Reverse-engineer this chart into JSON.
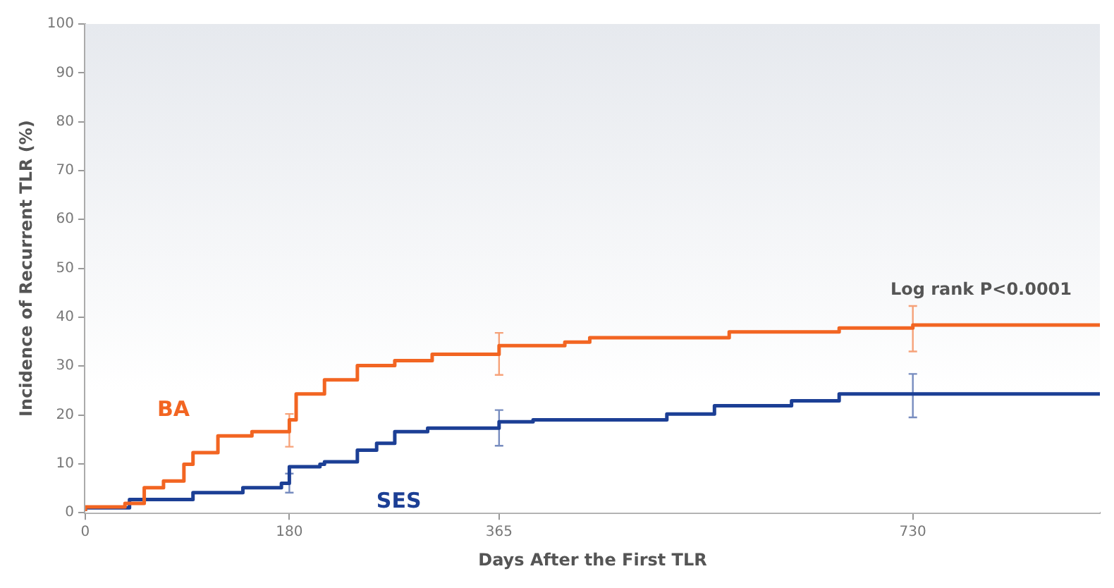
{
  "chart_data": {
    "type": "step",
    "xlabel": "Days After the First TLR",
    "ylabel": "Incidence of Recurrent TLR (%)",
    "xlim": [
      0,
      895
    ],
    "xticks": [
      0,
      180,
      365,
      730
    ],
    "ylim": [
      0,
      100
    ],
    "yticks": [
      0,
      10,
      20,
      30,
      40,
      50,
      60,
      70,
      80,
      90,
      100
    ],
    "grid": false,
    "legend": false,
    "marker": "none",
    "annotations": [
      "Log rank P<0.0001"
    ],
    "series": [
      {
        "name": "BA",
        "color": "#f26522",
        "x": [
          0,
          35,
          52,
          69,
          87,
          95,
          117,
          147,
          180,
          186,
          211,
          240,
          273,
          306,
          365,
          423,
          445,
          568,
          665,
          730,
          782,
          895
        ],
        "values": [
          0.3,
          1.2,
          1.9,
          5.1,
          6.5,
          9.9,
          12.3,
          15.7,
          16.6,
          19,
          24.3,
          27.2,
          30.1,
          31.1,
          32.4,
          34.2,
          34.9,
          35.8,
          37,
          37.8,
          38.4,
          38.4
        ],
        "errors": [
          null,
          null,
          null,
          null,
          null,
          null,
          null,
          null,
          [
            13.5,
            20.2
          ],
          null,
          null,
          null,
          null,
          null,
          [
            28.2,
            36.8
          ],
          null,
          null,
          null,
          null,
          [
            33,
            42.3
          ],
          null,
          null
        ]
      },
      {
        "name": "SES",
        "color": "#1c3f95",
        "x": [
          0,
          39,
          95,
          139,
          173,
          180,
          207,
          211,
          240,
          257,
          273,
          302,
          365,
          395,
          513,
          555,
          623,
          665,
          722,
          730,
          895
        ],
        "values": [
          0.3,
          1,
          2.7,
          4.1,
          5.1,
          6,
          9.4,
          9.9,
          10.4,
          12.8,
          14.2,
          16.6,
          17.3,
          18.6,
          19,
          20.2,
          21.9,
          22.9,
          24.3,
          24.3,
          24.3
        ],
        "errors": [
          null,
          null,
          null,
          null,
          null,
          [
            4.1,
            8
          ],
          null,
          null,
          null,
          null,
          null,
          null,
          [
            13.7,
            21
          ],
          null,
          null,
          null,
          null,
          null,
          null,
          [
            19.5,
            28.4
          ],
          null
        ]
      }
    ]
  }
}
